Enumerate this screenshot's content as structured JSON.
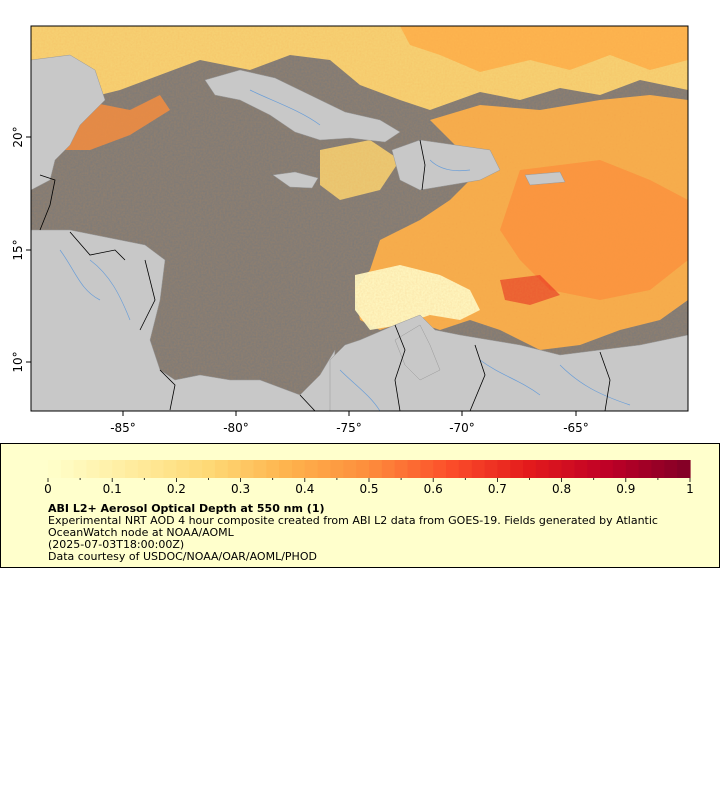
{
  "map": {
    "lon_ticks": [
      "-85°",
      "-80°",
      "-75°",
      "-70°",
      "-65°"
    ],
    "lat_ticks": [
      "20°",
      "15°",
      "10°"
    ],
    "colors": {
      "ocean_masked": "#7a7a7a",
      "land": "#c8c8c8",
      "rivers": "#6a9ed8",
      "borders": "#000000"
    }
  },
  "legend": {
    "title": "ABI L2+ Aerosol Optical Depth at 550 nm (1)",
    "line1": "Experimental NRT AOD 4 hour composite created from ABI L2 data from GOES-19. Fields generated by Atlantic",
    "line2": "OceanWatch node at NOAA/AOML",
    "line3": "(2025-07-03T18:00:00Z)",
    "line4": "Data courtesy of USDOC/NOAA/OAR/AOML/PHOD",
    "colorbar_ticks": [
      "0",
      "0.1",
      "0.2",
      "0.3",
      "0.4",
      "0.5",
      "0.6",
      "0.7",
      "0.8",
      "0.9",
      "1"
    ],
    "colorbar_stops": [
      "#ffffcc",
      "#ffeda0",
      "#fed976",
      "#feb24c",
      "#fd8d3c",
      "#fc4e2a",
      "#e31a1c",
      "#bd0026",
      "#800026"
    ]
  }
}
